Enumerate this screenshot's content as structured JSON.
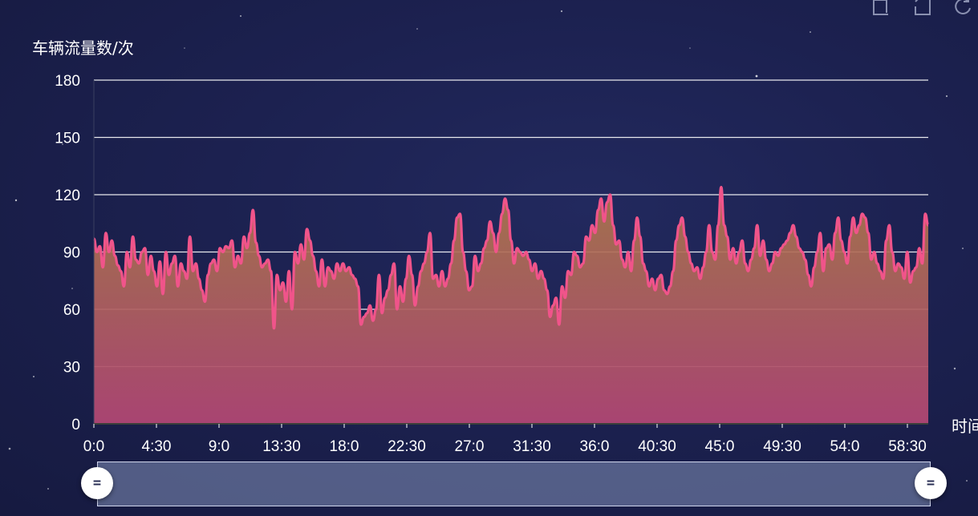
{
  "chart_data": {
    "type": "area",
    "title": "",
    "ylabel": "车辆流量数/次",
    "xlabel": "时间",
    "ylim": [
      0,
      180
    ],
    "yticks": [
      0,
      30,
      60,
      90,
      120,
      150,
      180
    ],
    "xtick_labels": [
      "0:0",
      "4:30",
      "9:0",
      "13:30",
      "18:0",
      "22:30",
      "27:0",
      "31:30",
      "36:0",
      "40:30",
      "45:0",
      "49:30",
      "54:0",
      "58:30"
    ],
    "x_interval_minutes": 4.5,
    "grid": true,
    "line_color": "#f0548a",
    "area_gradient_top": "#b07a4a",
    "area_gradient_bottom": "#b04674",
    "series": [
      {
        "values": [
          97,
          90,
          93,
          82,
          100,
          90,
          96,
          88,
          83,
          80,
          72,
          90,
          82,
          98,
          86,
          84,
          90,
          92,
          78,
          88,
          80,
          72,
          85,
          68,
          90,
          78,
          84,
          88,
          72,
          84,
          80,
          76,
          98,
          80,
          84,
          76,
          70,
          64,
          78,
          84,
          86,
          80,
          92,
          90,
          93,
          92,
          96,
          82,
          88,
          84,
          98,
          92,
          100,
          112,
          95,
          88,
          82,
          84,
          86,
          80,
          50,
          78,
          70,
          74,
          64,
          80,
          60,
          90,
          84,
          94,
          86,
          102,
          96,
          88,
          80,
          72,
          86,
          72,
          82,
          80,
          76,
          84,
          80,
          84,
          80,
          82,
          78,
          76,
          72,
          52,
          56,
          58,
          62,
          54,
          60,
          78,
          58,
          66,
          70,
          78,
          84,
          60,
          72,
          64,
          76,
          88,
          78,
          62,
          72,
          80,
          84,
          90,
          100,
          76,
          78,
          72,
          80,
          72,
          76,
          84,
          96,
          108,
          110,
          90,
          80,
          70,
          72,
          88,
          80,
          84,
          92,
          96,
          106,
          100,
          90,
          100,
          110,
          118,
          112,
          96,
          84,
          92,
          90,
          88,
          90,
          86,
          80,
          84,
          76,
          80,
          76,
          70,
          56,
          62,
          66,
          52,
          72,
          66,
          80,
          78,
          90,
          88,
          82,
          84,
          98,
          96,
          104,
          100,
          112,
          118,
          106,
          116,
          120,
          104,
          94,
          96,
          86,
          82,
          90,
          80,
          96,
          108,
          98,
          84,
          80,
          72,
          76,
          70,
          76,
          78,
          70,
          68,
          72,
          80,
          96,
          104,
          108,
          98,
          90,
          84,
          80,
          82,
          76,
          82,
          90,
          104,
          90,
          86,
          104,
          124,
          104,
          98,
          86,
          92,
          84,
          90,
          96,
          84,
          80,
          86,
          92,
          104,
          88,
          96,
          86,
          80,
          84,
          90,
          88,
          92,
          94,
          96,
          100,
          104,
          98,
          92,
          90,
          86,
          78,
          72,
          82,
          90,
          100,
          80,
          92,
          94,
          86,
          100,
          108,
          96,
          90,
          84,
          98,
          108,
          100,
          104,
          110,
          108,
          100,
          86,
          90,
          84,
          80,
          76,
          96,
          104,
          90,
          80,
          84,
          82,
          76,
          90,
          74,
          80,
          82,
          92,
          84,
          110,
          104
        ]
      }
    ]
  },
  "data_zoom": {
    "start_label": "0:0",
    "end_label": "58:30"
  },
  "toolbox": {
    "icons": [
      "zoom-icon",
      "zoom-reset-icon",
      "restore-icon"
    ]
  },
  "colors": {
    "background": "#1c2150",
    "axis_text": "#ffffff",
    "grid": "#ffffff",
    "slider_fill": "#8492ba"
  }
}
